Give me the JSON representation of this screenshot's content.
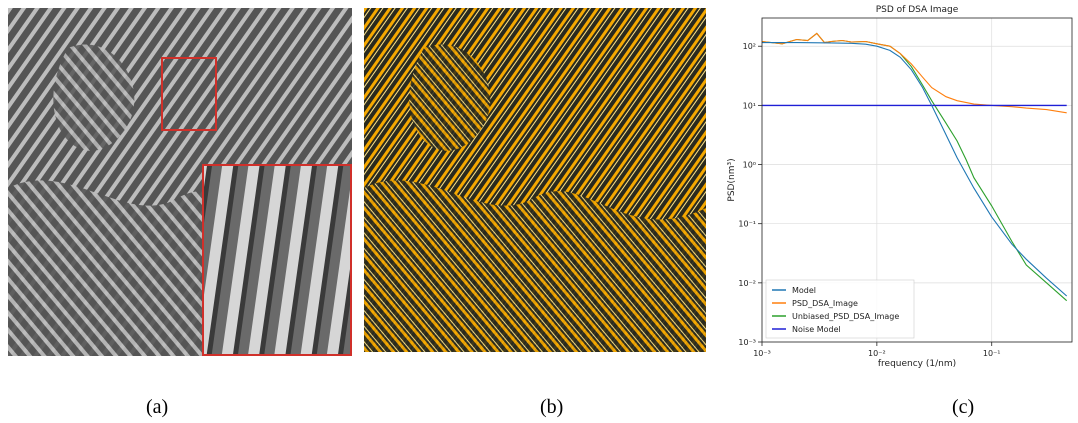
{
  "captions": {
    "a": "(a)",
    "b": "(b)",
    "c": "(c)"
  },
  "colors": {
    "model": "#1f77b4",
    "psd": "#ff7f0e",
    "unbiased": "#2ca02c",
    "noise": "#1f1fd6",
    "overlay": "#f5a800",
    "inset_border": "#d0302a"
  },
  "chart_data": {
    "type": "line",
    "title": "PSD of DSA Image",
    "xlabel": "frequency (1/nm)",
    "ylabel": "PSD(nm³)",
    "xscale": "log",
    "yscale": "log",
    "xlim": [
      0.001,
      0.5
    ],
    "ylim": [
      0.001,
      300
    ],
    "x_ticks": [
      "10⁻³",
      "10⁻²",
      "10⁻¹"
    ],
    "y_ticks": [
      "10⁻³",
      "10⁻²",
      "10⁻¹",
      "10⁰",
      "10¹",
      "10²"
    ],
    "grid": true,
    "legend_position": "bottom-left",
    "series": [
      {
        "name": "Model",
        "x": [
          0.001,
          0.002,
          0.004,
          0.006,
          0.008,
          0.01,
          0.013,
          0.016,
          0.02,
          0.025,
          0.03,
          0.04,
          0.05,
          0.07,
          0.1,
          0.15,
          0.2,
          0.3,
          0.45
        ],
        "y": [
          115,
          115,
          114,
          112,
          108,
          100,
          85,
          65,
          40,
          20,
          10,
          3.2,
          1.3,
          0.4,
          0.13,
          0.045,
          0.025,
          0.012,
          0.006
        ]
      },
      {
        "name": "PSD_DSA_Image",
        "x": [
          0.001,
          0.0015,
          0.002,
          0.0025,
          0.003,
          0.0035,
          0.004,
          0.005,
          0.006,
          0.008,
          0.01,
          0.013,
          0.016,
          0.02,
          0.025,
          0.03,
          0.04,
          0.05,
          0.07,
          0.1,
          0.15,
          0.2,
          0.3,
          0.45
        ],
        "y": [
          120,
          110,
          130,
          125,
          165,
          115,
          120,
          125,
          118,
          120,
          110,
          100,
          75,
          50,
          30,
          20,
          14,
          12,
          10.5,
          10,
          9.5,
          9,
          8.5,
          7.5
        ]
      },
      {
        "name": "Unbiased_PSD_DSA_Image",
        "x": [
          0.001,
          0.0015,
          0.002,
          0.0025,
          0.003,
          0.0035,
          0.004,
          0.005,
          0.006,
          0.008,
          0.01,
          0.013,
          0.016,
          0.02,
          0.025,
          0.03,
          0.04,
          0.05,
          0.06,
          0.07,
          0.1,
          0.15,
          0.2,
          0.3,
          0.45
        ],
        "y": [
          120,
          110,
          130,
          125,
          165,
          115,
          120,
          125,
          118,
          120,
          110,
          100,
          75,
          45,
          22,
          12,
          5,
          2.5,
          1.2,
          0.6,
          0.2,
          0.05,
          0.02,
          0.01,
          0.005
        ]
      },
      {
        "name": "Noise Model",
        "x": [
          0.001,
          0.45
        ],
        "y": [
          10,
          10
        ]
      }
    ]
  }
}
